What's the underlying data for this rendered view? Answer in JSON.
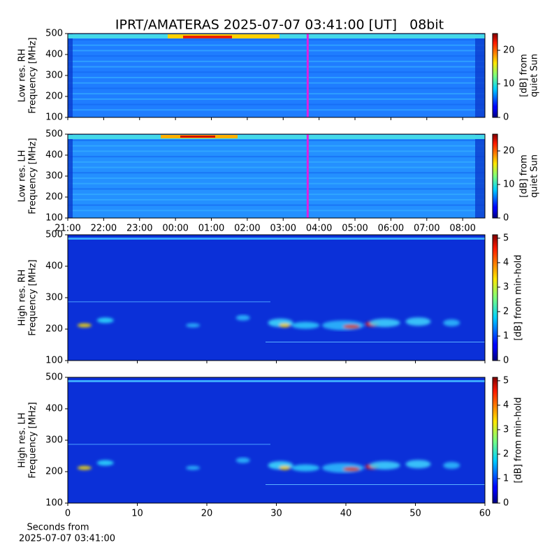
{
  "title": "IPRT/AMATERAS 2025-07-07 03:41:00 [UT]   08bit",
  "chart_data": [
    {
      "type": "heatmap",
      "ylabel": [
        "Low res. RH",
        "Frequency [MHz]"
      ],
      "ylim": [
        100,
        500
      ],
      "yticks": [
        100,
        200,
        300,
        400,
        500
      ],
      "xlim": [
        0,
        11.62
      ],
      "xticks": [
        0,
        1,
        2,
        3,
        4,
        5,
        6,
        7,
        8,
        9,
        10,
        11
      ],
      "marker_x": 6.683,
      "marker_color": "#e020e0",
      "colorbar": {
        "label": [
          "[dB] from",
          "quiet Sun"
        ],
        "lim": [
          0,
          25
        ],
        "ticks": [
          0,
          10,
          20
        ]
      }
    },
    {
      "type": "heatmap",
      "ylabel": [
        "Low res. LH",
        "Frequency [MHz]"
      ],
      "ylim": [
        100,
        500
      ],
      "yticks": [
        100,
        200,
        300,
        400,
        500
      ],
      "xlim": [
        0,
        11.62
      ],
      "xticks": [
        {
          "value": 0,
          "label": "21:00"
        },
        {
          "value": 1,
          "label": "22:00"
        },
        {
          "value": 2,
          "label": "23:00"
        },
        {
          "value": 3,
          "label": "00:00"
        },
        {
          "value": 4,
          "label": "01:00"
        },
        {
          "value": 5,
          "label": "02:00"
        },
        {
          "value": 6,
          "label": "03:00"
        },
        {
          "value": 7,
          "label": "04:00"
        },
        {
          "value": 8,
          "label": "05:00"
        },
        {
          "value": 9,
          "label": "06:00"
        },
        {
          "value": 10,
          "label": "07:00"
        },
        {
          "value": 11,
          "label": "08:00"
        }
      ],
      "marker_x": 6.683,
      "marker_color": "#e020e0",
      "colorbar": {
        "label": [
          "[dB] from",
          "quiet Sun"
        ],
        "lim": [
          0,
          25
        ],
        "ticks": [
          0,
          10,
          20
        ]
      }
    },
    {
      "type": "heatmap",
      "ylabel": [
        "High res. RH",
        "Frequency [MHz]"
      ],
      "ylim": [
        100,
        500
      ],
      "yticks": [
        100,
        200,
        300,
        400,
        500
      ],
      "xlim": [
        0,
        60
      ],
      "xticks": [
        0,
        10,
        20,
        30,
        40,
        50,
        60
      ],
      "colorbar": {
        "label": [
          "[dB] from min-hold"
        ],
        "lim": [
          0,
          5.14
        ],
        "ticks": [
          0,
          1,
          2,
          3,
          4,
          5
        ]
      }
    },
    {
      "type": "heatmap",
      "ylabel": [
        "High res. LH",
        "Frequency [MHz]"
      ],
      "ylim": [
        100,
        500
      ],
      "yticks": [
        100,
        200,
        300,
        400,
        500
      ],
      "xlim": [
        0,
        60
      ],
      "xticks": [
        0,
        10,
        20,
        30,
        40,
        50,
        60
      ],
      "xlabel": [
        "Seconds from",
        "2025-07-07 03:41:00"
      ],
      "colorbar": {
        "label": [
          "[dB] from min-hold"
        ],
        "lim": [
          0,
          5.14
        ],
        "ticks": [
          0,
          1,
          2,
          3,
          4,
          5
        ]
      }
    }
  ]
}
